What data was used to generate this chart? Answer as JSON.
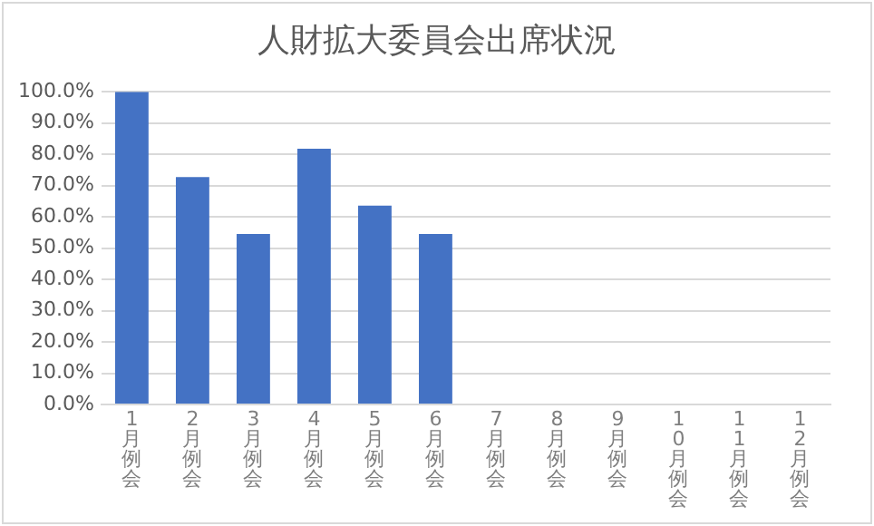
{
  "chart_data": {
    "type": "bar",
    "title": "人財拡大委員会出席状況",
    "categories": [
      "1月例会",
      "2月例会",
      "3月例会",
      "4月例会",
      "5月例会",
      "6月例会",
      "7月例会",
      "8月例会",
      "9月例会",
      "10月例会",
      "11月例会",
      "12月例会"
    ],
    "values": [
      100,
      72.7,
      54.5,
      81.8,
      63.6,
      54.5,
      null,
      null,
      null,
      null,
      null,
      null
    ],
    "color": "#4472c4",
    "ylim": [
      0,
      100
    ],
    "yticks": [
      {
        "value": 0,
        "label": "0.0%"
      },
      {
        "value": 10,
        "label": "10.0%"
      },
      {
        "value": 20,
        "label": "20.0%"
      },
      {
        "value": 30,
        "label": "30.0%"
      },
      {
        "value": 40,
        "label": "40.0%"
      },
      {
        "value": 50,
        "label": "50.0%"
      },
      {
        "value": 60,
        "label": "60.0%"
      },
      {
        "value": 70,
        "label": "70.0%"
      },
      {
        "value": 80,
        "label": "80.0%"
      },
      {
        "value": 90,
        "label": "90.0%"
      },
      {
        "value": 100,
        "label": "100.0%"
      }
    ],
    "grid": "y"
  }
}
